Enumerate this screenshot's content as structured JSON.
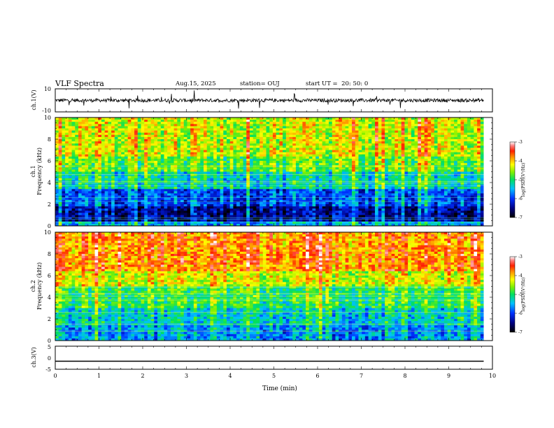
{
  "header": {
    "title": "VLF Spectra",
    "date": "Aug.15, 2025",
    "station": "station= OUJ",
    "start_label": "start  UT =",
    "start_time": "20: 50: 0"
  },
  "chart_data": [
    {
      "id": "ch1-waveform",
      "type": "line",
      "ylabel": "ch.1(V)",
      "ylim": [
        -10,
        10
      ],
      "yticks": [
        "10",
        "-10"
      ],
      "xlim": [
        0,
        10
      ],
      "baseline": 0,
      "color": "#000000"
    },
    {
      "id": "ch1-spectrogram",
      "type": "heatmap",
      "ylabel": "ch.1\nFrequency (kHz)",
      "ylim": [
        0,
        10
      ],
      "yticks": [
        "0",
        "2",
        "4",
        "6",
        "8",
        "10"
      ],
      "xlim": [
        0,
        10
      ],
      "data_end_min": 9.8,
      "colorbar": {
        "label": "log(PSD)(V²/Hz)",
        "range": [
          -7,
          -3
        ],
        "ticks": [
          "-3",
          "-4",
          "-5",
          "-6",
          "-7"
        ]
      },
      "band_levels_log_psd": [
        {
          "f": [
            0,
            0.5
          ],
          "level": -5.5
        },
        {
          "f": [
            0.5,
            1.8
          ],
          "level": -6.4
        },
        {
          "f": [
            1.8,
            3.5
          ],
          "level": -5.9
        },
        {
          "f": [
            3.5,
            5.0
          ],
          "level": -5.2
        },
        {
          "f": [
            5.0,
            6.5
          ],
          "level": -4.7
        },
        {
          "f": [
            6.5,
            10
          ],
          "level": -4.3
        }
      ]
    },
    {
      "id": "ch2-spectrogram",
      "type": "heatmap",
      "ylabel": "ch.2\nFrequency (kHz)",
      "ylim": [
        0,
        10
      ],
      "yticks": [
        "0",
        "2",
        "4",
        "6",
        "8",
        "10"
      ],
      "xlim": [
        0,
        10
      ],
      "data_end_min": 9.8,
      "colorbar": {
        "label": "log(PSD)(V²/Hz)",
        "range": [
          -7,
          -3
        ],
        "ticks": [
          "-3",
          "-4",
          "-5",
          "-6",
          "-7"
        ]
      },
      "band_levels_log_psd": [
        {
          "f": [
            0,
            1.5
          ],
          "level": -5.6
        },
        {
          "f": [
            1.5,
            3.0
          ],
          "level": -5.3
        },
        {
          "f": [
            3.0,
            5.0
          ],
          "level": -4.9
        },
        {
          "f": [
            5.0,
            6.5
          ],
          "level": -4.3
        },
        {
          "f": [
            6.5,
            10
          ],
          "level": -3.8
        }
      ]
    },
    {
      "id": "ch3-waveform",
      "type": "line",
      "ylabel": "ch.3(V)",
      "ylim": [
        -5,
        5
      ],
      "yticks": [
        "5",
        "0",
        "-5"
      ],
      "xlim": [
        0,
        10
      ],
      "constant_value": -1.5,
      "xlabel": "Time (min)",
      "xticks": [
        "0",
        "1",
        "2",
        "3",
        "4",
        "5",
        "6",
        "7",
        "8",
        "9",
        "10"
      ]
    }
  ]
}
